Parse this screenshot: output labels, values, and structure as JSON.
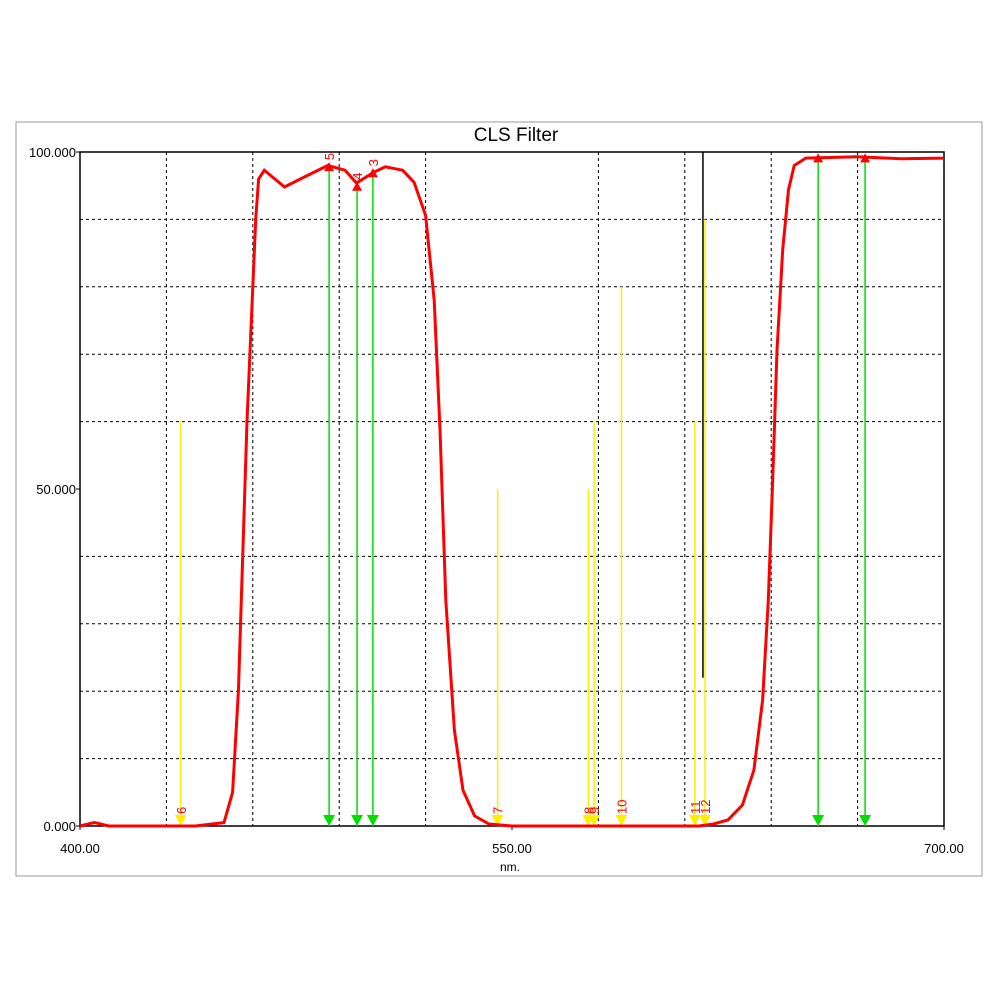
{
  "chart_data": {
    "type": "line",
    "title": "CLS Filter",
    "x_label": "nm.",
    "xlim": [
      400,
      700
    ],
    "ylim": [
      0,
      100
    ],
    "xticks": [
      {
        "value": 400,
        "label": "400.00"
      },
      {
        "value": 550,
        "label": "550.00"
      },
      {
        "value": 700,
        "label": "700.00"
      }
    ],
    "yticks": [
      {
        "value": 0,
        "label": "0.000"
      },
      {
        "value": 50,
        "label": "50.000"
      },
      {
        "value": 100,
        "label": "100.000"
      }
    ],
    "xgrid": [
      430,
      460,
      490,
      520,
      580,
      610,
      640,
      670
    ],
    "ygrid": [
      10,
      20,
      30,
      40,
      60,
      70,
      80,
      90
    ],
    "grid": true,
    "series": [
      {
        "name": "CLS Filter",
        "color": "#ff0000",
        "x": [
          400,
          405,
          410,
          440,
          450,
          453,
          455,
          456.5,
          458,
          460,
          461,
          462,
          464,
          471,
          478,
          486,
          492,
          496,
          502,
          506,
          512,
          516,
          520,
          523,
          525,
          527,
          530,
          533,
          537,
          542,
          550,
          600,
          615,
          620,
          625,
          630,
          634,
          637,
          639,
          640.5,
          642,
          644,
          646,
          648,
          652,
          670,
          685,
          700
        ],
        "values": [
          0,
          0.5,
          0,
          0,
          0.5,
          5,
          20,
          40,
          60,
          80,
          90,
          96,
          97.3,
          94.8,
          96.3,
          98,
          97.3,
          95.4,
          97,
          97.8,
          97.3,
          95.5,
          90.6,
          78,
          58.8,
          33.5,
          14.2,
          5.3,
          1.5,
          0.3,
          0,
          0,
          0,
          0.3,
          0.9,
          3.1,
          8.3,
          18.7,
          33.5,
          51,
          70.6,
          85.5,
          94.4,
          98,
          99.1,
          99.3,
          99,
          99.1
        ]
      }
    ],
    "markers": [
      {
        "label": "5",
        "x": 486.5,
        "top": 97.9,
        "color": "#00dd00"
      },
      {
        "label": "4",
        "x": 496.2,
        "top": 95,
        "color": "#00dd00"
      },
      {
        "label": "3",
        "x": 501.7,
        "top": 97,
        "color": "#00dd00"
      },
      {
        "label": null,
        "x": 656.3,
        "top": 99.2,
        "color": "#00dd00"
      },
      {
        "label": null,
        "x": 672.6,
        "top": 99.2,
        "color": "#00dd00"
      },
      {
        "label": "6",
        "x": 435,
        "top": 60,
        "color": "#ffee00"
      },
      {
        "label": "7",
        "x": 545,
        "top": 50,
        "color": "#ffee00"
      },
      {
        "label": "8",
        "x": 576.5,
        "top": 50,
        "color": "#ffee00"
      },
      {
        "label": "9",
        "x": 578.5,
        "top": 60,
        "color": "#ffee00"
      },
      {
        "label": "10",
        "x": 588,
        "top": 80,
        "color": "#ffee00"
      },
      {
        "label": "11",
        "x": 613.5,
        "top": 60,
        "color": "#ffee00"
      },
      {
        "label": "12",
        "x": 617,
        "top": 90,
        "color": "#ffee00"
      }
    ],
    "cursor": {
      "x": 616.3,
      "y": [
        22,
        100
      ],
      "color": "#000000"
    }
  }
}
